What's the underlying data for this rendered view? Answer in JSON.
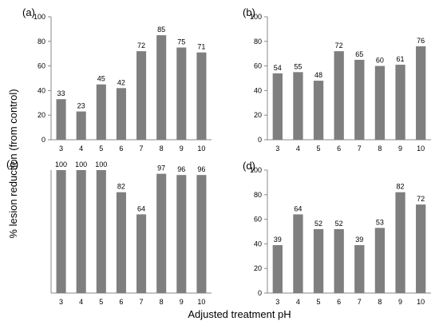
{
  "figure": {
    "ylabel": "% lesion reduction (from control)",
    "xlabel": "Adjusted treatment pH"
  },
  "chart_data": [
    {
      "type": "bar",
      "panel": "(a)",
      "categories": [
        "3",
        "4",
        "5",
        "6",
        "7",
        "8",
        "9",
        "10"
      ],
      "values": [
        33,
        23,
        45,
        42,
        72,
        85,
        75,
        71
      ],
      "value_labels": [
        "33",
        "23",
        "45",
        "42",
        "72",
        "85",
        "75",
        "71"
      ],
      "ylim": [
        0,
        100
      ],
      "yticks": [
        "0",
        "20",
        "40",
        "60",
        "80",
        "100"
      ],
      "grid": false,
      "bar_color": "#7f7f7f"
    },
    {
      "type": "bar",
      "panel": "(b)",
      "categories": [
        "3",
        "4",
        "5",
        "6",
        "7",
        "8",
        "9",
        "10"
      ],
      "values": [
        54,
        55,
        48,
        72,
        65,
        60,
        61,
        76
      ],
      "value_labels": [
        "54",
        "55",
        "48",
        "72",
        "65",
        "60",
        "61",
        "76"
      ],
      "ylim": [
        0,
        100
      ],
      "yticks": [
        "0",
        "20",
        "40",
        "60",
        "80",
        "100"
      ],
      "grid": false,
      "bar_color": "#7f7f7f"
    },
    {
      "type": "bar",
      "panel": "(c)",
      "categories": [
        "3",
        "4",
        "5",
        "6",
        "7",
        "8",
        "9",
        "10"
      ],
      "values": [
        100,
        100,
        100,
        82,
        64,
        97,
        96,
        96
      ],
      "value_labels": [
        "100",
        "100",
        "100",
        "82",
        "64",
        "97",
        "96",
        "96"
      ],
      "ylim": [
        0,
        100
      ],
      "yticks": [],
      "grid": false,
      "bar_color": "#7f7f7f"
    },
    {
      "type": "bar",
      "panel": "(d)",
      "categories": [
        "3",
        "4",
        "5",
        "6",
        "7",
        "8",
        "9",
        "10"
      ],
      "values": [
        39,
        64,
        52,
        52,
        39,
        53,
        82,
        72
      ],
      "value_labels": [
        "39",
        "64",
        "52",
        "52",
        "39",
        "53",
        "82",
        "72"
      ],
      "ylim": [
        0,
        100
      ],
      "yticks": [
        "0",
        "20",
        "40",
        "60",
        "80",
        "100"
      ],
      "grid": false,
      "bar_color": "#7f7f7f"
    }
  ]
}
